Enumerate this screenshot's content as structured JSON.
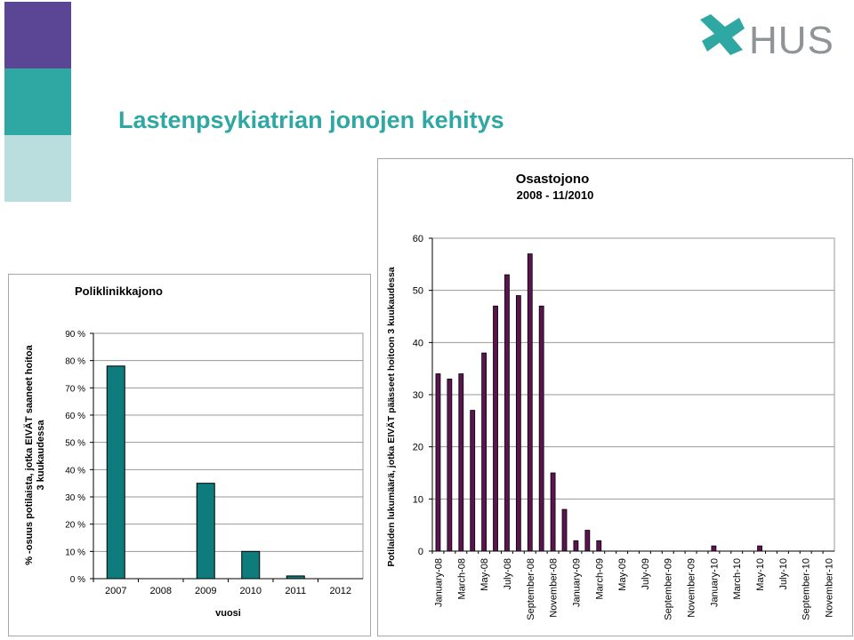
{
  "page_title": "Lastenpsykiatrian jonojen kehitys",
  "logo": {
    "text": "HUS"
  },
  "colors": {
    "band_purple": "#5b4696",
    "band_teal": "#2fa7a2",
    "band_light": "#b9dedd",
    "title": "#2fa7a2",
    "bar_left": "#0e7b7d",
    "bar_right": "#5c1450"
  },
  "chart_data": [
    {
      "type": "bar",
      "title": "Poliklinikkajono",
      "xlabel": "vuosi",
      "ylabel_lines": [
        "% -osuus potilaista, jotka EIVÄT saaneet hoitoa",
        "3 kuukaudessa"
      ],
      "ylim": [
        0,
        90
      ],
      "yticks": [
        "0 %",
        "10 %",
        "20 %",
        "30 %",
        "40 %",
        "50 %",
        "60 %",
        "70 %",
        "80 %",
        "90 %"
      ],
      "categories": [
        "2007",
        "2008",
        "2009",
        "2010",
        "2011",
        "2012"
      ],
      "values": [
        78,
        0,
        35,
        10,
        1,
        0
      ],
      "grid": true,
      "legend": "none"
    },
    {
      "type": "bar",
      "title_lines": [
        "Osastojono",
        "2008 - 11/2010"
      ],
      "ylabel": "Potilaiden lukumäärä, jotka EIVÄT päässeet hoitoon 3 kuukaudessa",
      "ylim": [
        0,
        60
      ],
      "yticks": [
        "0",
        "10",
        "20",
        "30",
        "40",
        "50",
        "60"
      ],
      "categories": [
        "January-08",
        "February-08",
        "March-08",
        "April-08",
        "May-08",
        "June-08",
        "July-08",
        "August-08",
        "September-08",
        "October-08",
        "November-08",
        "December-08",
        "January-09",
        "February-09",
        "March-09",
        "April-09",
        "May-09",
        "June-09",
        "July-09",
        "August-09",
        "September-09",
        "October-09",
        "November-09",
        "December-09",
        "January-10",
        "February-10",
        "March-10",
        "April-10",
        "May-10",
        "June-10",
        "July-10",
        "August-10",
        "September-10",
        "October-10",
        "November-10"
      ],
      "shown_labels": [
        "January-08",
        "March-08",
        "May-08",
        "July-08",
        "September-08",
        "November-08",
        "January-09",
        "March-09",
        "May-09",
        "July-09",
        "September-09",
        "November-09",
        "January-10",
        "March-10",
        "May-10",
        "July-10",
        "September-10",
        "November-10"
      ],
      "values": [
        34,
        33,
        34,
        27,
        38,
        47,
        53,
        49,
        57,
        47,
        15,
        8,
        2,
        4,
        2,
        0,
        0,
        0,
        0,
        0,
        0,
        0,
        0,
        0,
        1,
        0,
        0,
        0,
        1,
        0,
        0,
        0,
        0,
        0,
        0
      ],
      "grid": true,
      "legend": "none"
    }
  ]
}
